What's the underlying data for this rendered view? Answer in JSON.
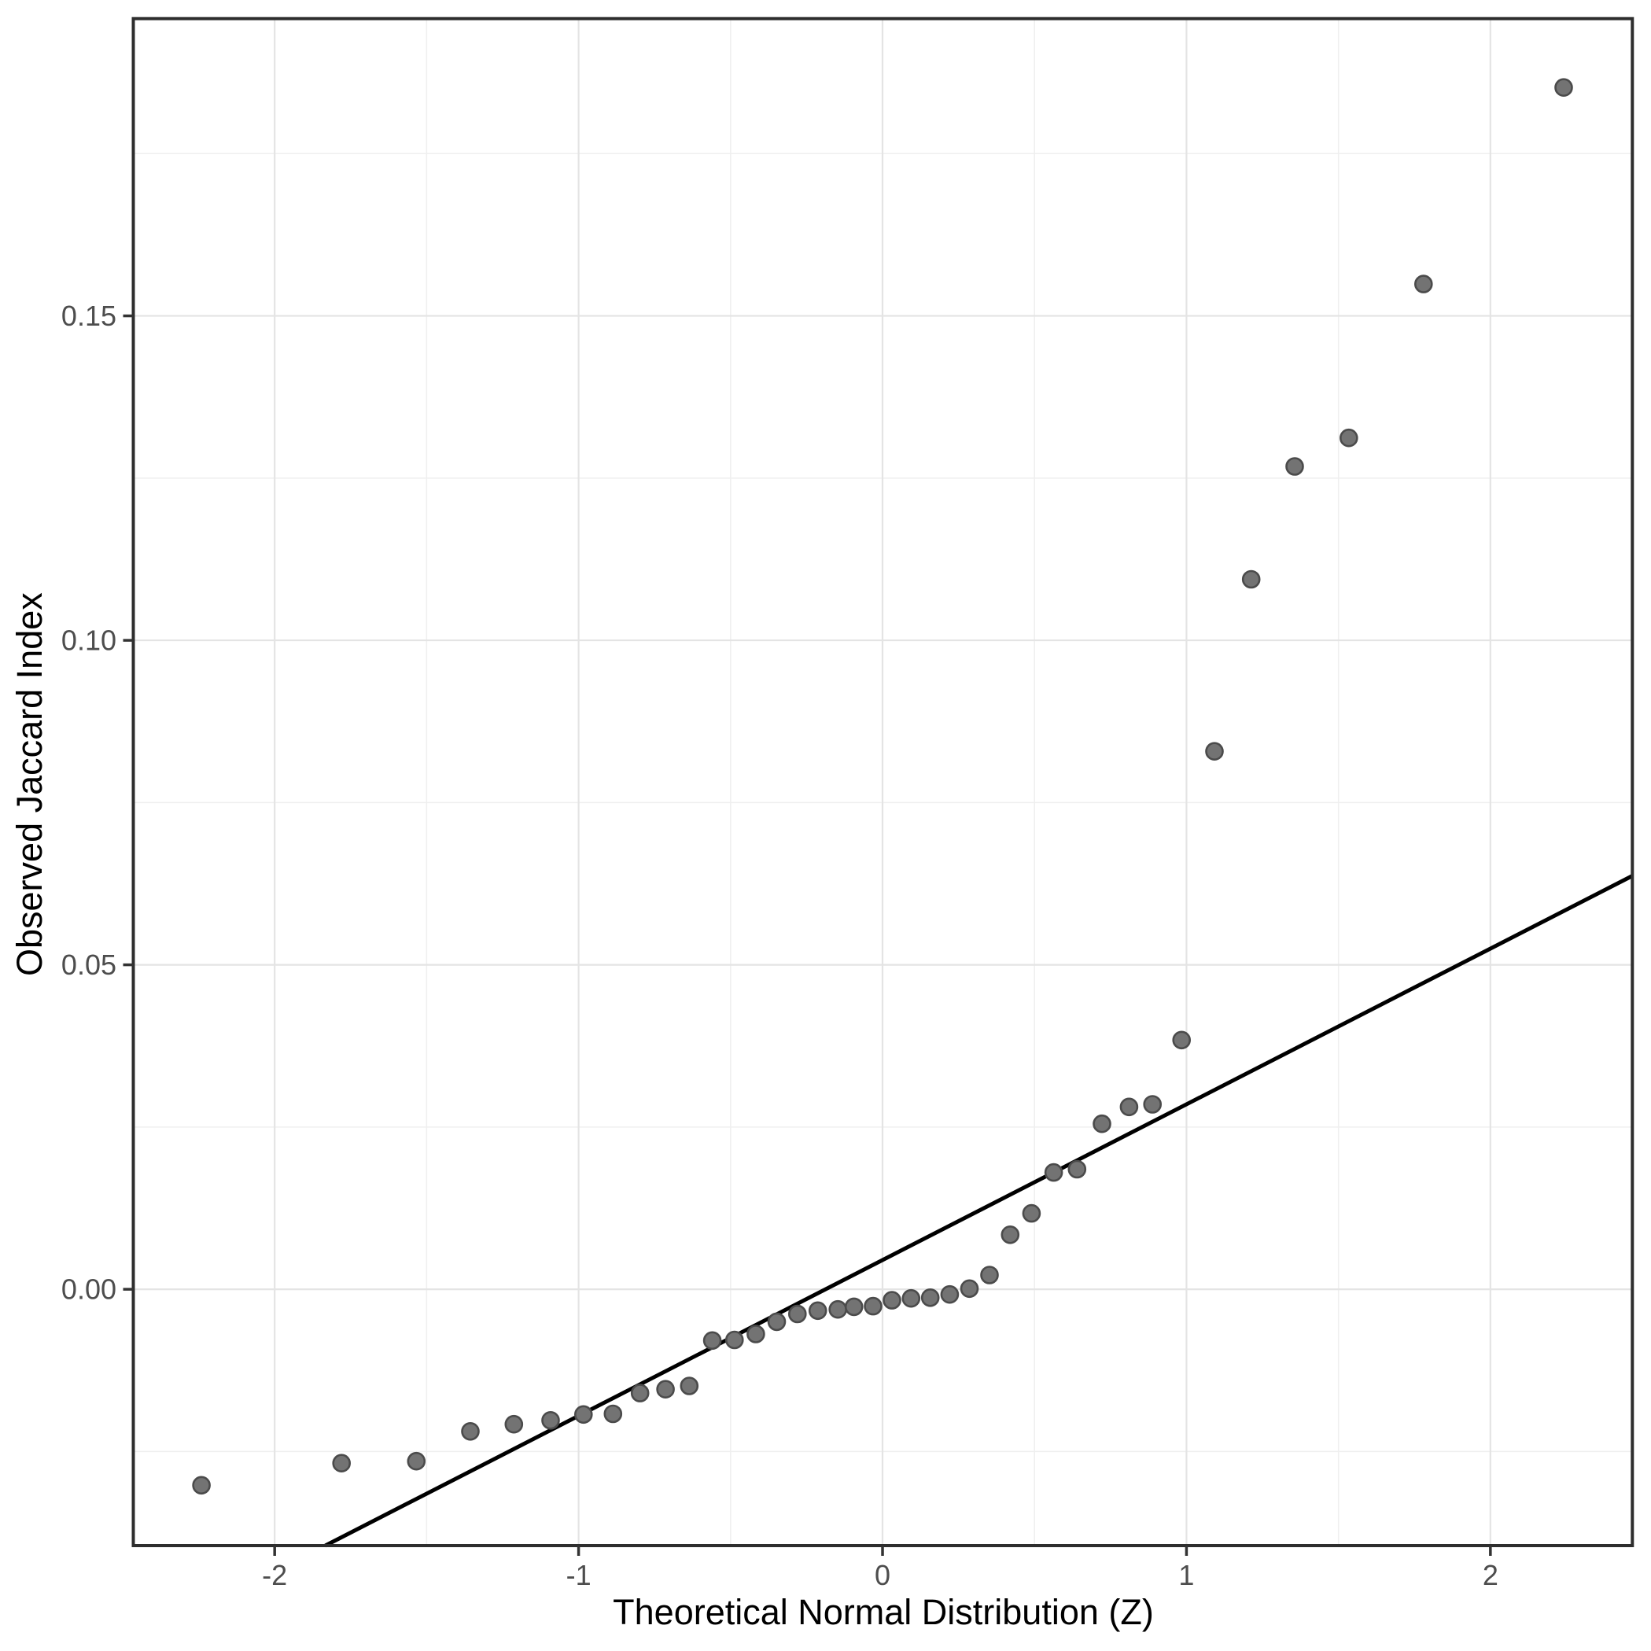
{
  "chart_data": {
    "type": "scatter",
    "title": "",
    "xlabel": "Theoretical Normal Distribution (Z)",
    "ylabel": "Observed Jaccard Index",
    "xlim": [
      -2.465,
      2.467
    ],
    "ylim": [
      -0.0395,
      0.1958
    ],
    "grid": "on",
    "legend": "none",
    "x_ticks": [
      -2,
      -1,
      0,
      1,
      2
    ],
    "x_tick_labels": [
      "-2",
      "-1",
      "0",
      "1",
      "2"
    ],
    "x_minor_gridlines": [
      -1.5,
      -0.5,
      0.5,
      1.5
    ],
    "y_ticks": [
      0.0,
      0.05,
      0.1,
      0.15
    ],
    "y_tick_labels": [
      "0.00",
      "0.05",
      "0.10",
      "0.15"
    ],
    "y_minor_gridlines": [
      -0.025,
      0.025,
      0.075,
      0.125,
      0.175
    ],
    "points": [
      [
        -2.241,
        -0.0302
      ],
      [
        -1.78,
        -0.0268
      ],
      [
        -1.534,
        -0.0265
      ],
      [
        -1.356,
        -0.0219
      ],
      [
        -1.213,
        -0.0208
      ],
      [
        -1.092,
        -0.0202
      ],
      [
        -0.984,
        -0.0193
      ],
      [
        -0.887,
        -0.0192
      ],
      [
        -0.798,
        -0.016
      ],
      [
        -0.714,
        -0.0154
      ],
      [
        -0.636,
        -0.0149
      ],
      [
        -0.56,
        -0.0079
      ],
      [
        -0.487,
        -0.0078
      ],
      [
        -0.417,
        -0.0069
      ],
      [
        -0.348,
        -0.005
      ],
      [
        -0.28,
        -0.0038
      ],
      [
        -0.213,
        -0.0033
      ],
      [
        -0.147,
        -0.0031
      ],
      [
        -0.094,
        -0.0027
      ],
      [
        -0.031,
        -0.0026
      ],
      [
        0.031,
        -0.0017
      ],
      [
        0.094,
        -0.0014
      ],
      [
        0.157,
        -0.0013
      ],
      [
        0.221,
        -0.0008
      ],
      [
        0.286,
        0.0001
      ],
      [
        0.352,
        0.0022
      ],
      [
        0.42,
        0.0084
      ],
      [
        0.49,
        0.0117
      ],
      [
        0.563,
        0.018
      ],
      [
        0.64,
        0.0185
      ],
      [
        0.722,
        0.0255
      ],
      [
        0.811,
        0.0281
      ],
      [
        0.888,
        0.0285
      ],
      [
        0.984,
        0.0384
      ],
      [
        1.092,
        0.0829
      ],
      [
        1.213,
        0.1094
      ],
      [
        1.356,
        0.1268
      ],
      [
        1.534,
        0.1312
      ],
      [
        1.78,
        0.1549
      ],
      [
        2.241,
        0.1852
      ]
    ],
    "ref_line": {
      "intercept": 0.0045,
      "slope": 0.024
    },
    "colors": {
      "point_fill": "#737373",
      "point_stroke": "#4b4b4b",
      "ref_line": "#000000",
      "grid_major": "#e4e4e4",
      "grid_minor": "#efefef",
      "panel_border": "#2e2e2e",
      "tick_mark": "#333333",
      "tick_label": "#4d4d4d",
      "axis_title": "#000000",
      "background": "#ffffff"
    }
  }
}
